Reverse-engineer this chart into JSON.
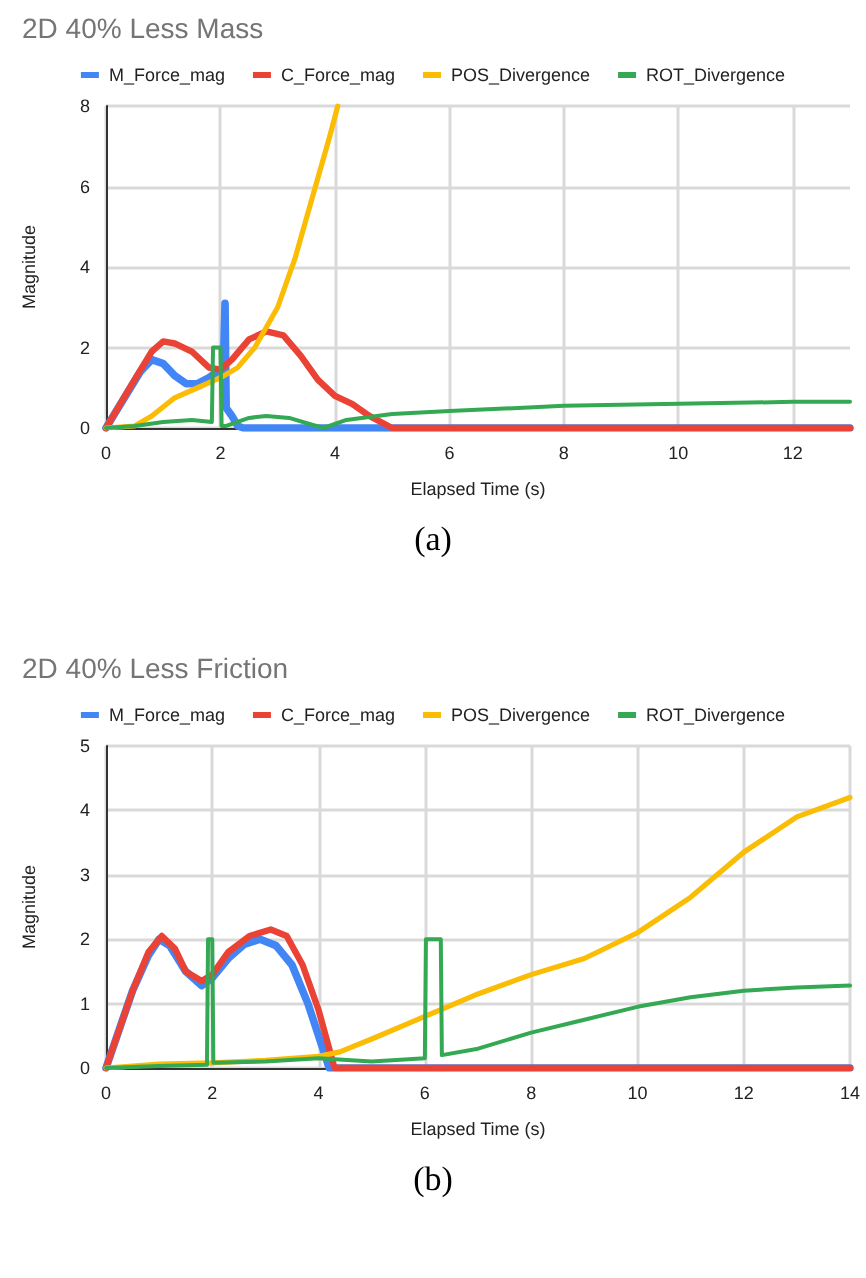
{
  "chart_data": [
    {
      "type": "line",
      "title": "2D 40% Less Mass",
      "xlabel": "Elapsed Time (s)",
      "ylabel": "Magnitude",
      "annotations": [
        "(a)"
      ],
      "legend": "top",
      "grid": true,
      "xlim": [
        0,
        13
      ],
      "xticks": [
        0,
        2,
        4,
        6,
        8,
        10,
        12
      ],
      "ylim": [
        0,
        8
      ],
      "yticks": [
        0,
        2,
        4,
        6,
        8
      ],
      "series": [
        {
          "name": "M_Force_mag",
          "color": "#4285f4",
          "x": [
            0,
            0.3,
            0.6,
            0.8,
            1.0,
            1.2,
            1.4,
            1.6,
            1.8,
            1.95,
            2.05,
            2.08,
            2.1,
            2.2,
            2.3,
            2.4,
            5,
            13
          ],
          "values": [
            0,
            0.7,
            1.4,
            1.7,
            1.6,
            1.3,
            1.1,
            1.1,
            1.25,
            1.4,
            1.5,
            3.1,
            0.5,
            0.3,
            0.05,
            0,
            0,
            0
          ]
        },
        {
          "name": "C_Force_mag",
          "color": "#ea4335",
          "x": [
            0,
            0.5,
            0.8,
            1.0,
            1.2,
            1.5,
            1.8,
            2.0,
            2.2,
            2.5,
            2.8,
            3.1,
            3.4,
            3.7,
            4.0,
            4.3,
            4.6,
            5.0,
            13
          ],
          "values": [
            0,
            1.2,
            1.9,
            2.15,
            2.1,
            1.9,
            1.5,
            1.45,
            1.7,
            2.2,
            2.4,
            2.3,
            1.8,
            1.2,
            0.8,
            0.6,
            0.3,
            0,
            0
          ]
        },
        {
          "name": "POS_Divergence",
          "color": "#fbbc04",
          "x": [
            0,
            0.5,
            0.8,
            1.2,
            1.6,
            2.0,
            2.3,
            2.6,
            3.0,
            3.3,
            3.6,
            3.9,
            4.05
          ],
          "values": [
            0,
            0.05,
            0.3,
            0.75,
            1.0,
            1.25,
            1.5,
            2.0,
            3.0,
            4.2,
            5.7,
            7.2,
            8
          ]
        },
        {
          "name": "ROT_Divergence",
          "color": "#34a853",
          "x": [
            0,
            0.5,
            1.0,
            1.5,
            1.85,
            1.87,
            2.0,
            2.02,
            2.1,
            2.5,
            2.8,
            3.2,
            3.6,
            3.8,
            4.2,
            5,
            6,
            8,
            10,
            12,
            13
          ],
          "values": [
            0,
            0.05,
            0.15,
            0.2,
            0.15,
            2.0,
            2.0,
            0.05,
            0.05,
            0.25,
            0.3,
            0.25,
            0.08,
            0,
            0.2,
            0.35,
            0.42,
            0.55,
            0.6,
            0.65,
            0.65
          ]
        }
      ]
    },
    {
      "type": "line",
      "title": "2D 40% Less Friction",
      "xlabel": "Elapsed Time (s)",
      "ylabel": "Magnitude",
      "annotations": [
        "(b)"
      ],
      "legend": "top",
      "grid": true,
      "xlim": [
        0,
        14
      ],
      "xticks": [
        0,
        2,
        4,
        6,
        8,
        10,
        12,
        14
      ],
      "ylim": [
        0,
        5
      ],
      "yticks": [
        0,
        1,
        2,
        3,
        4,
        5
      ],
      "series": [
        {
          "name": "M_Force_mag",
          "color": "#4285f4",
          "x": [
            0,
            0.5,
            0.8,
            1.0,
            1.2,
            1.5,
            1.8,
            2.0,
            2.3,
            2.6,
            2.9,
            3.2,
            3.5,
            3.8,
            4.0,
            4.2,
            14
          ],
          "values": [
            0,
            1.2,
            1.75,
            2.0,
            1.9,
            1.5,
            1.28,
            1.4,
            1.7,
            1.92,
            2.0,
            1.9,
            1.6,
            1.0,
            0.5,
            0,
            0
          ]
        },
        {
          "name": "C_Force_mag",
          "color": "#ea4335",
          "x": [
            0,
            0.5,
            0.8,
            1.05,
            1.3,
            1.5,
            1.8,
            2.0,
            2.3,
            2.7,
            3.1,
            3.4,
            3.7,
            4.0,
            4.2,
            4.3,
            14
          ],
          "values": [
            0,
            1.2,
            1.8,
            2.05,
            1.85,
            1.5,
            1.35,
            1.45,
            1.8,
            2.05,
            2.15,
            2.05,
            1.6,
            0.9,
            0.3,
            0,
            0
          ]
        },
        {
          "name": "POS_Divergence",
          "color": "#fbbc04",
          "x": [
            0,
            1,
            2,
            3,
            4,
            4.4,
            5,
            6,
            7,
            8,
            9,
            10,
            11,
            12,
            13,
            14
          ],
          "values": [
            0,
            0.06,
            0.08,
            0.12,
            0.18,
            0.25,
            0.45,
            0.8,
            1.15,
            1.45,
            1.7,
            2.1,
            2.65,
            3.35,
            3.9,
            4.2
          ]
        },
        {
          "name": "ROT_Divergence",
          "color": "#34a853",
          "x": [
            0,
            1,
            1.9,
            1.92,
            2.0,
            2.02,
            3,
            4,
            5,
            6,
            6.02,
            6.3,
            6.32,
            7,
            8,
            9,
            10,
            11,
            12,
            13,
            14
          ],
          "values": [
            0,
            0.03,
            0.05,
            2.0,
            2.0,
            0.08,
            0.1,
            0.15,
            0.1,
            0.15,
            2.0,
            2.0,
            0.2,
            0.3,
            0.55,
            0.75,
            0.95,
            1.1,
            1.2,
            1.25,
            1.28
          ]
        }
      ]
    }
  ]
}
